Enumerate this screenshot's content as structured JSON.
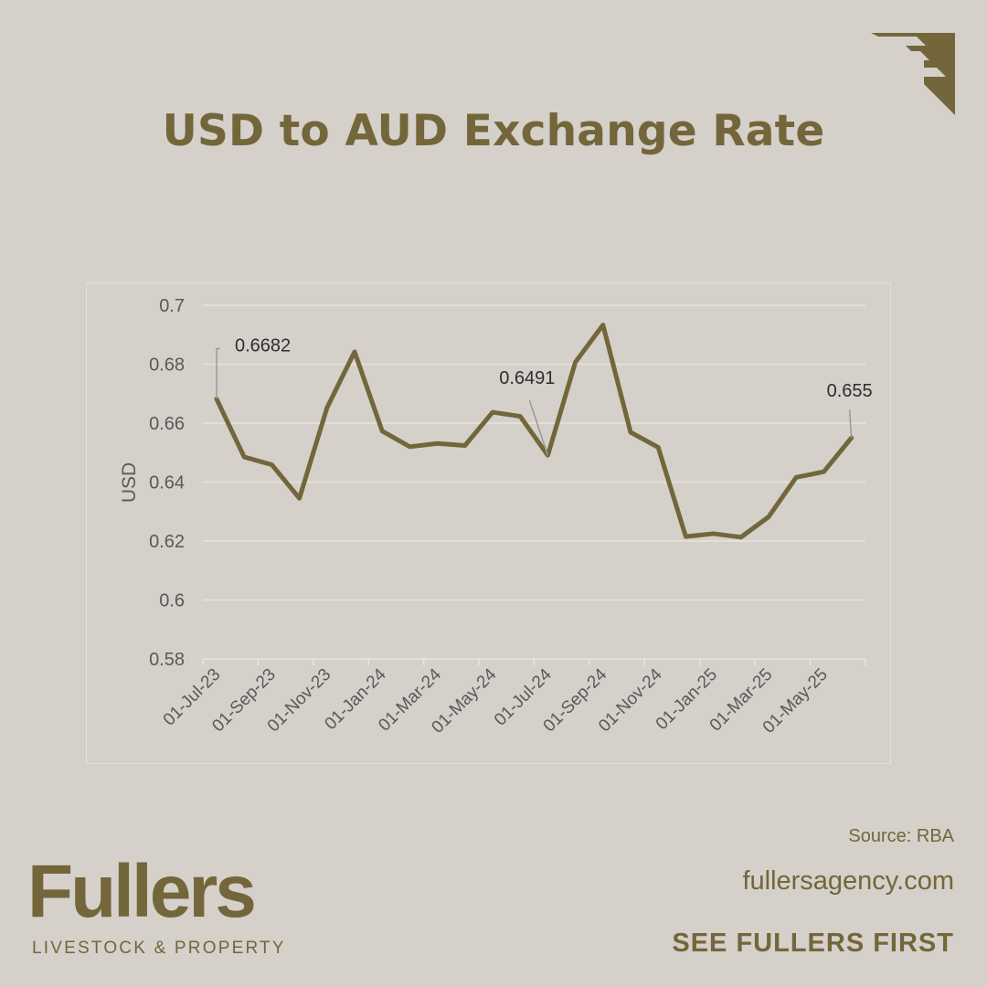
{
  "header": {
    "title": "USD to AUD Exchange Rate"
  },
  "logo": {
    "icon": "fullers-f-mark-icon"
  },
  "footer": {
    "source": "Source: RBA",
    "website": "fullersagency.com",
    "slogan": "SEE FULLERS FIRST",
    "brand_name": "Fullers",
    "brand_sub": "LIVESTOCK & PROPERTY"
  },
  "colors": {
    "background": "#d5d0ca",
    "brand": "#73663a",
    "line": "#73663a",
    "grid": "#e6e3de",
    "axis_text": "#595959"
  },
  "chart_data": {
    "type": "line",
    "title": "",
    "xlabel": "",
    "ylabel": "USD",
    "ylim": [
      0.58,
      0.7
    ],
    "yticks": [
      0.58,
      0.6,
      0.62,
      0.64,
      0.66,
      0.68,
      0.7
    ],
    "ytick_labels": [
      "0.58",
      "0.6",
      "0.62",
      "0.64",
      "0.66",
      "0.68",
      "0.7"
    ],
    "xtick_labels": [
      "01-Jul-23",
      "01-Sep-23",
      "01-Nov-23",
      "01-Jan-24",
      "01-Mar-24",
      "01-May-24",
      "01-Jul-24",
      "01-Sep-24",
      "01-Nov-24",
      "01-Jan-25",
      "01-Mar-25",
      "01-May-25"
    ],
    "grid": true,
    "series": [
      {
        "x": [
          "01-Jul-23",
          "01-Aug-23",
          "01-Sep-23",
          "01-Oct-23",
          "01-Nov-23",
          "01-Dec-23",
          "01-Jan-24",
          "01-Feb-24",
          "01-Mar-24",
          "01-Apr-24",
          "01-May-24",
          "01-Jun-24",
          "01-Jul-24",
          "01-Aug-24",
          "01-Sep-24",
          "01-Oct-24",
          "01-Nov-24",
          "01-Dec-24",
          "01-Jan-25",
          "01-Feb-25",
          "01-Mar-25",
          "01-Apr-25",
          "01-May-25",
          "01-Jun-25"
        ],
        "values": [
          0.6682,
          0.6485,
          0.6459,
          0.6345,
          0.6652,
          0.6842,
          0.6573,
          0.652,
          0.6531,
          0.6524,
          0.6637,
          0.6623,
          0.6491,
          0.6807,
          0.6933,
          0.6569,
          0.6518,
          0.6215,
          0.6225,
          0.6213,
          0.6282,
          0.6416,
          0.6435,
          0.655
        ]
      }
    ],
    "annotations": [
      {
        "x": "01-Jul-23",
        "value": 0.6682,
        "text": "0.6682"
      },
      {
        "x": "01-Jul-24",
        "value": 0.6491,
        "text": "0.6491"
      },
      {
        "x": "01-Jun-25",
        "value": 0.655,
        "text": "0.655"
      }
    ]
  }
}
